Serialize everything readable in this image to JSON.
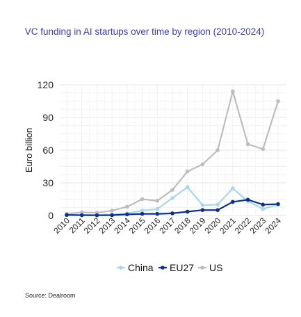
{
  "title": "VC funding in AI startups over time by region (2010-2024)",
  "source": "Source: Dealroom",
  "chart_data": {
    "type": "line",
    "title": "VC funding in AI startups over time by region (2010-2024)",
    "xlabel": "",
    "ylabel": "Euro billion",
    "ylim": [
      0,
      120
    ],
    "yticks": [
      0,
      30,
      60,
      90,
      120
    ],
    "grid": true,
    "legend": "bottom",
    "categories": [
      "2010",
      "2011",
      "2012",
      "2013",
      "2014",
      "2015",
      "2016",
      "2017",
      "2018",
      "2019",
      "2020",
      "2021",
      "2022",
      "2023",
      "2024"
    ],
    "series": [
      {
        "name": "China",
        "color": "#a8d8ea",
        "values": [
          0.5,
          0.5,
          0.5,
          1,
          2,
          4.5,
          6,
          16,
          26,
          9.5,
          10,
          25,
          13,
          6,
          10
        ]
      },
      {
        "name": "EU27",
        "color": "#0a2f8c",
        "values": [
          0.5,
          0.3,
          0.2,
          0.3,
          1,
          1.5,
          1.5,
          2,
          3.5,
          5,
          5,
          12.5,
          14.5,
          10,
          10.5
        ]
      },
      {
        "name": "US",
        "color": "#bdbdbd",
        "values": [
          1.5,
          3,
          2.5,
          4.5,
          8,
          15,
          13.5,
          23.5,
          40.5,
          47,
          60,
          114,
          65.5,
          61,
          105
        ]
      }
    ]
  }
}
